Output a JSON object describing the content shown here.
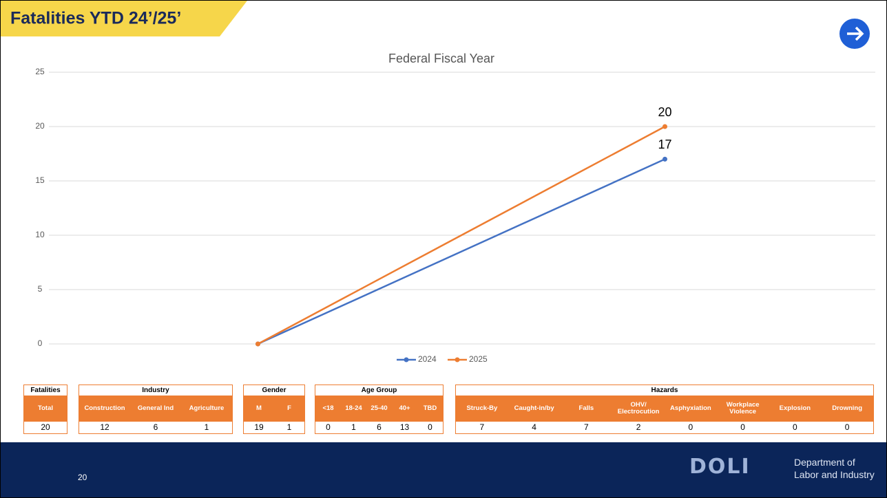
{
  "header": {
    "title": "Fatalities YTD 24’/25’"
  },
  "chart_data": {
    "type": "line",
    "title": "Federal Fiscal Year",
    "categories": [
      null,
      null
    ],
    "series": [
      {
        "name": "2024",
        "color": "#4472c4",
        "values": [
          0,
          17
        ]
      },
      {
        "name": "2025",
        "color": "#ed7d31",
        "values": [
          0,
          20
        ]
      }
    ],
    "data_labels": "last",
    "ylim": [
      0,
      25
    ],
    "yticks": [
      0,
      5,
      10,
      15,
      20,
      25
    ],
    "grid": true,
    "legend": "bottom"
  },
  "tables": [
    {
      "title": "Fatalities",
      "columns": [
        "Total"
      ],
      "values": [
        20
      ]
    },
    {
      "title": "Industry",
      "columns": [
        "Construction",
        "General Ind",
        "Agriculture"
      ],
      "values": [
        12,
        6,
        1
      ]
    },
    {
      "title": "Gender",
      "columns": [
        "M",
        "F"
      ],
      "values": [
        19,
        1
      ]
    },
    {
      "title": "Age Group",
      "columns": [
        "<18",
        "18-24",
        "25-40",
        "40+",
        "TBD"
      ],
      "values": [
        0,
        1,
        6,
        13,
        0
      ]
    },
    {
      "title": "Hazards",
      "columns": [
        "Struck-By",
        "Caught-in/by",
        "Falls",
        "OHV/ Electrocution",
        "Asphyxiation",
        "Workplace Violence",
        "Explosion",
        "Drowning"
      ],
      "values": [
        7,
        4,
        7,
        2,
        0,
        0,
        0,
        0
      ]
    }
  ],
  "footer": {
    "page": "20",
    "logo": "DOLI",
    "org": [
      "Department of",
      "Labor and Industry"
    ]
  }
}
